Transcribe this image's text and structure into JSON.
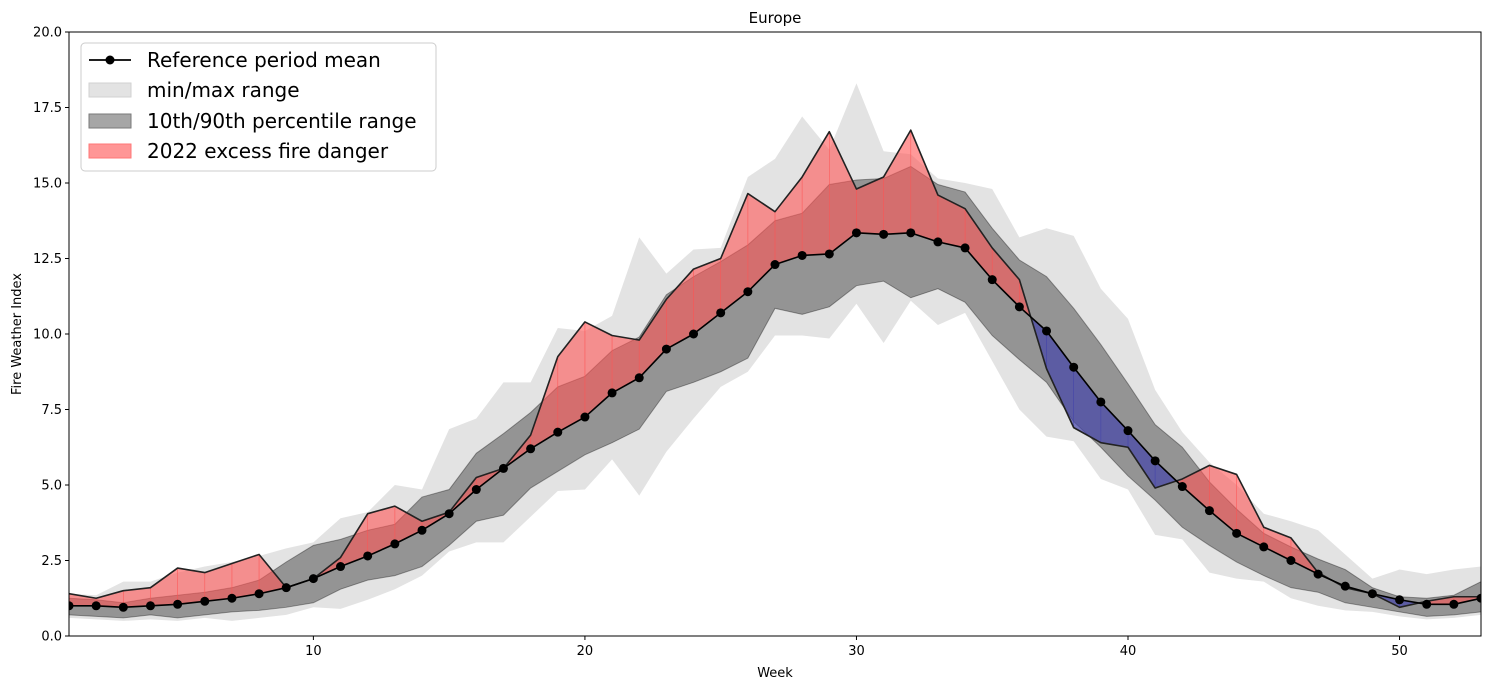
{
  "chart_data": {
    "type": "line",
    "title": "Europe",
    "xlabel": "Week",
    "ylabel": "Fire Weather Index",
    "xlim": [
      1,
      53
    ],
    "ylim": [
      0,
      20
    ],
    "xticks": [
      10,
      20,
      30,
      40,
      50
    ],
    "xtick_labels": [
      "10",
      "20",
      "30",
      "40",
      "50"
    ],
    "yticks": [
      0,
      2.5,
      5,
      7.5,
      10,
      12.5,
      15,
      17.5,
      20
    ],
    "ytick_labels": [
      "0.0",
      "2.5",
      "5.0",
      "7.5",
      "10.0",
      "12.5",
      "15.0",
      "17.5",
      "20.0"
    ],
    "legend_position": "upper-left",
    "x": [
      1,
      2,
      3,
      4,
      5,
      6,
      7,
      8,
      9,
      10,
      11,
      12,
      13,
      14,
      15,
      16,
      17,
      18,
      19,
      20,
      21,
      22,
      23,
      24,
      25,
      26,
      27,
      28,
      29,
      30,
      31,
      32,
      33,
      34,
      35,
      36,
      37,
      38,
      39,
      40,
      41,
      42,
      43,
      44,
      45,
      46,
      47,
      48,
      49,
      50,
      51,
      52,
      53
    ],
    "series": [
      {
        "name": "Reference period mean",
        "role": "mean",
        "color": "#000000",
        "values": [
          1.0,
          1.0,
          0.95,
          1.0,
          1.05,
          1.15,
          1.25,
          1.4,
          1.6,
          1.9,
          2.3,
          2.65,
          3.05,
          3.5,
          4.05,
          4.85,
          5.55,
          6.2,
          6.75,
          7.25,
          8.05,
          8.55,
          9.5,
          10.0,
          10.7,
          11.4,
          12.3,
          12.6,
          12.65,
          13.35,
          13.3,
          13.35,
          13.05,
          12.85,
          11.8,
          10.9,
          10.1,
          8.9,
          7.75,
          6.8,
          5.8,
          4.95,
          4.15,
          3.4,
          2.95,
          2.5,
          2.05,
          1.65,
          1.4,
          1.2,
          1.05,
          1.05,
          1.25
        ]
      },
      {
        "name": "min/max range",
        "role": "minmax",
        "color": "#e3e3e3",
        "lower": [
          0.6,
          0.55,
          0.5,
          0.55,
          0.5,
          0.6,
          0.5,
          0.6,
          0.7,
          0.95,
          0.9,
          1.2,
          1.55,
          2.0,
          2.8,
          3.1,
          3.1,
          3.95,
          4.8,
          4.85,
          5.85,
          4.65,
          6.1,
          7.2,
          8.25,
          8.75,
          9.95,
          9.95,
          9.85,
          11.0,
          9.7,
          11.1,
          10.3,
          10.7,
          9.1,
          7.5,
          6.6,
          6.45,
          5.2,
          4.85,
          3.35,
          3.2,
          2.1,
          1.9,
          1.8,
          1.25,
          1.0,
          0.85,
          0.8,
          0.65,
          0.55,
          0.6,
          0.7
        ],
        "upper": [
          1.4,
          1.35,
          1.8,
          1.8,
          2.1,
          2.3,
          2.45,
          2.65,
          2.9,
          3.1,
          3.9,
          4.1,
          5.0,
          4.85,
          6.85,
          7.2,
          8.4,
          8.4,
          10.2,
          10.1,
          10.6,
          13.2,
          12.0,
          12.8,
          12.85,
          15.2,
          15.8,
          17.2,
          16.1,
          18.3,
          16.05,
          15.95,
          15.15,
          15.0,
          14.8,
          13.2,
          13.5,
          13.25,
          11.5,
          10.5,
          8.15,
          6.75,
          5.75,
          5.0,
          4.05,
          3.8,
          3.5,
          2.7,
          1.9,
          2.2,
          2.05,
          2.2,
          2.3
        ]
      },
      {
        "name": "10th/90th percentile range",
        "role": "p10p90",
        "color": "#a3a3a3",
        "lower": [
          0.7,
          0.65,
          0.6,
          0.7,
          0.6,
          0.7,
          0.8,
          0.85,
          0.95,
          1.1,
          1.55,
          1.85,
          2.0,
          2.3,
          3.0,
          3.8,
          4.0,
          4.9,
          5.45,
          6.0,
          6.4,
          6.85,
          8.1,
          8.4,
          8.75,
          9.2,
          10.85,
          10.65,
          10.9,
          11.6,
          11.75,
          11.2,
          11.5,
          11.05,
          9.95,
          9.15,
          8.4,
          7.1,
          6.25,
          5.3,
          4.5,
          3.6,
          3.0,
          2.45,
          2.0,
          1.6,
          1.45,
          1.1,
          0.95,
          0.8,
          0.65,
          0.7,
          0.8
        ],
        "upper": [
          1.25,
          1.2,
          1.1,
          1.25,
          1.35,
          1.45,
          1.6,
          1.85,
          2.45,
          3.0,
          3.2,
          3.5,
          3.7,
          4.6,
          4.85,
          6.05,
          6.7,
          7.4,
          8.25,
          8.6,
          9.45,
          9.9,
          11.3,
          11.9,
          12.4,
          12.95,
          13.75,
          14.0,
          14.95,
          15.1,
          15.15,
          15.55,
          14.95,
          14.7,
          13.5,
          12.45,
          11.9,
          10.85,
          9.65,
          8.35,
          7.0,
          6.25,
          5.1,
          4.2,
          3.4,
          2.95,
          2.55,
          2.2,
          1.6,
          1.3,
          1.25,
          1.35,
          1.8
        ]
      },
      {
        "name": "2022 excess fire danger",
        "role": "current",
        "color": "#ff5555",
        "below_color": "#4444aa",
        "values": [
          1.4,
          1.25,
          1.5,
          1.6,
          2.25,
          2.1,
          2.4,
          2.7,
          1.6,
          1.9,
          2.6,
          4.05,
          4.3,
          3.8,
          4.1,
          5.25,
          5.55,
          6.65,
          9.25,
          10.4,
          9.95,
          9.8,
          11.15,
          12.15,
          12.5,
          14.65,
          14.05,
          15.2,
          16.7,
          14.8,
          15.2,
          16.75,
          14.6,
          14.15,
          12.85,
          11.8,
          8.85,
          6.9,
          6.4,
          6.25,
          4.9,
          5.2,
          5.65,
          5.35,
          3.6,
          3.25,
          2.1,
          1.6,
          1.4,
          0.95,
          1.15,
          1.3,
          1.3
        ]
      }
    ]
  }
}
